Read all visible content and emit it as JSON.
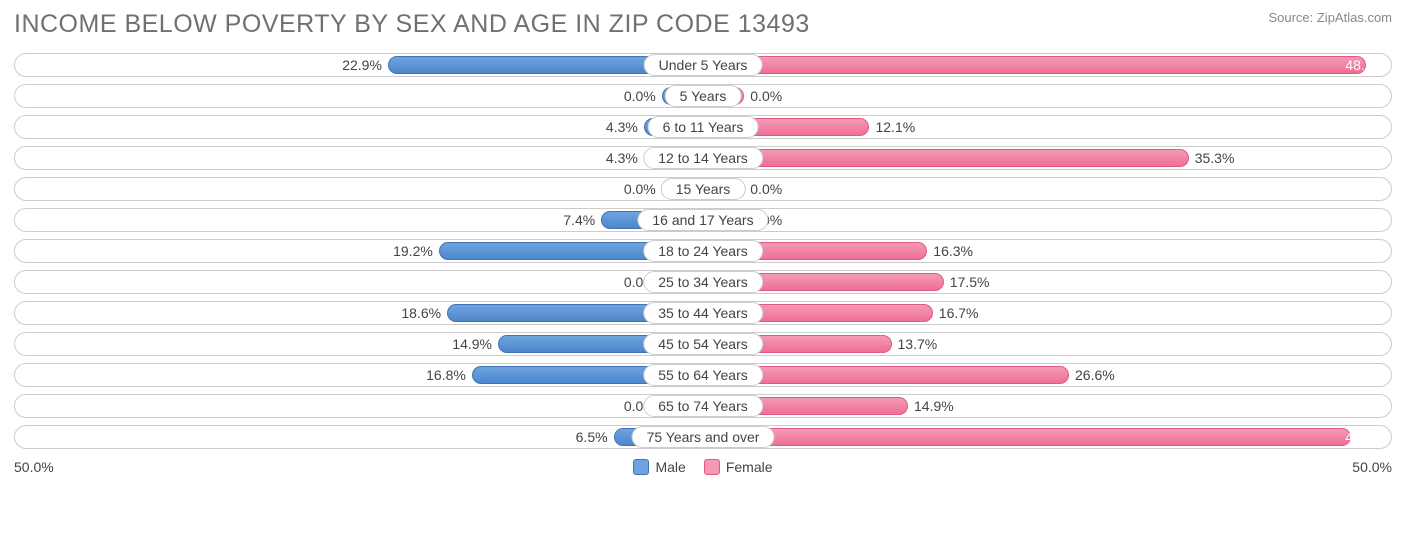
{
  "title": "INCOME BELOW POVERTY BY SEX AND AGE IN ZIP CODE 13493",
  "source": "Source: ZipAtlas.com",
  "axis_max": 50.0,
  "axis_label_left": "50.0%",
  "axis_label_right": "50.0%",
  "min_bar_pct": 6.0,
  "colors": {
    "male_fill_top": "#6fa3e0",
    "male_fill_bottom": "#4d87cb",
    "male_border": "#3f73b3",
    "female_fill_top": "#f49ab5",
    "female_fill_bottom": "#ef6f95",
    "female_border": "#e05a82",
    "row_border": "#cccccc",
    "text": "#444444",
    "title_color": "#707070",
    "source_color": "#888888",
    "background": "#ffffff"
  },
  "legend": {
    "male": "Male",
    "female": "Female"
  },
  "rows": [
    {
      "category": "Under 5 Years",
      "male": 22.9,
      "female": 48.2
    },
    {
      "category": "5 Years",
      "male": 0.0,
      "female": 0.0
    },
    {
      "category": "6 to 11 Years",
      "male": 4.3,
      "female": 12.1
    },
    {
      "category": "12 to 14 Years",
      "male": 4.3,
      "female": 35.3
    },
    {
      "category": "15 Years",
      "male": 0.0,
      "female": 0.0
    },
    {
      "category": "16 and 17 Years",
      "male": 7.4,
      "female": 0.0
    },
    {
      "category": "18 to 24 Years",
      "male": 19.2,
      "female": 16.3
    },
    {
      "category": "25 to 34 Years",
      "male": 0.0,
      "female": 17.5
    },
    {
      "category": "35 to 44 Years",
      "male": 18.6,
      "female": 16.7
    },
    {
      "category": "45 to 54 Years",
      "male": 14.9,
      "female": 13.7
    },
    {
      "category": "55 to 64 Years",
      "male": 16.8,
      "female": 26.6
    },
    {
      "category": "65 to 74 Years",
      "male": 0.0,
      "female": 14.9
    },
    {
      "category": "75 Years and over",
      "male": 6.5,
      "female": 47.1
    }
  ]
}
